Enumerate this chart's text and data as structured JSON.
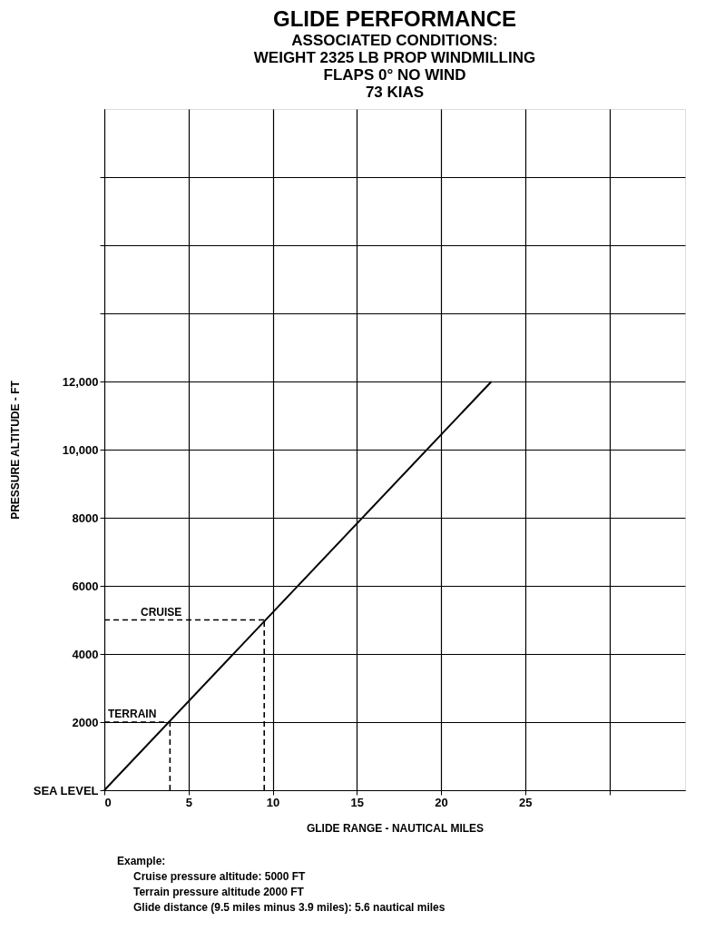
{
  "chart_data": {
    "type": "line",
    "title": "GLIDE PERFORMANCE",
    "subtitle": [
      "ASSOCIATED CONDITIONS:",
      "WEIGHT 2325 LB   PROP WINDMILLING",
      "FLAPS 0° NO WIND",
      "73 KIAS"
    ],
    "xlabel": "GLIDE RANGE - NAUTICAL MILES",
    "ylabel": "PRESSURE ALTITUDE - FT",
    "series": [
      {
        "color": "#000000",
        "x": [
          0,
          23
        ],
        "values": [
          0,
          12000
        ]
      }
    ],
    "xlim": [
      0,
      34.5
    ],
    "ylim": [
      0,
      20000
    ],
    "xticks": [
      0,
      5,
      10,
      15,
      20,
      25,
      {
        "value": 30,
        "label": null
      }
    ],
    "yticks": [
      {
        "value": 0,
        "label": "SEA LEVEL"
      },
      2000,
      4000,
      6000,
      8000,
      {
        "value": 10000,
        "label": "10,000"
      },
      {
        "value": 12000,
        "label": "12,000"
      },
      {
        "value": 14000,
        "label": null
      },
      {
        "value": 16000,
        "label": null
      },
      {
        "value": 18000,
        "label": null
      }
    ],
    "ref_lines": [
      {
        "axis": "y",
        "value": 5000,
        "label": "CRUISE",
        "line_style": "dashed",
        "color": "#000000"
      },
      {
        "axis": "y",
        "value": 2000,
        "label": "TERRAIN",
        "line_style": "dashed",
        "color": "#000000"
      },
      {
        "axis": "x",
        "value": 9.5,
        "label": null,
        "line_style": "dashed",
        "color": "#000000"
      },
      {
        "axis": "x",
        "value": 3.9,
        "label": null,
        "line_style": "dashed",
        "color": "#000000"
      }
    ],
    "annotations": [
      "Example:",
      "   Cruise pressure altitude:   5000 FT",
      "   Terrain pressure altitude   2000 FT",
      "   Glide distance (9.5 miles minus 3.9 miles):   5.6 nautical miles"
    ],
    "grid": true,
    "marker": "none",
    "line_style": "solid"
  }
}
